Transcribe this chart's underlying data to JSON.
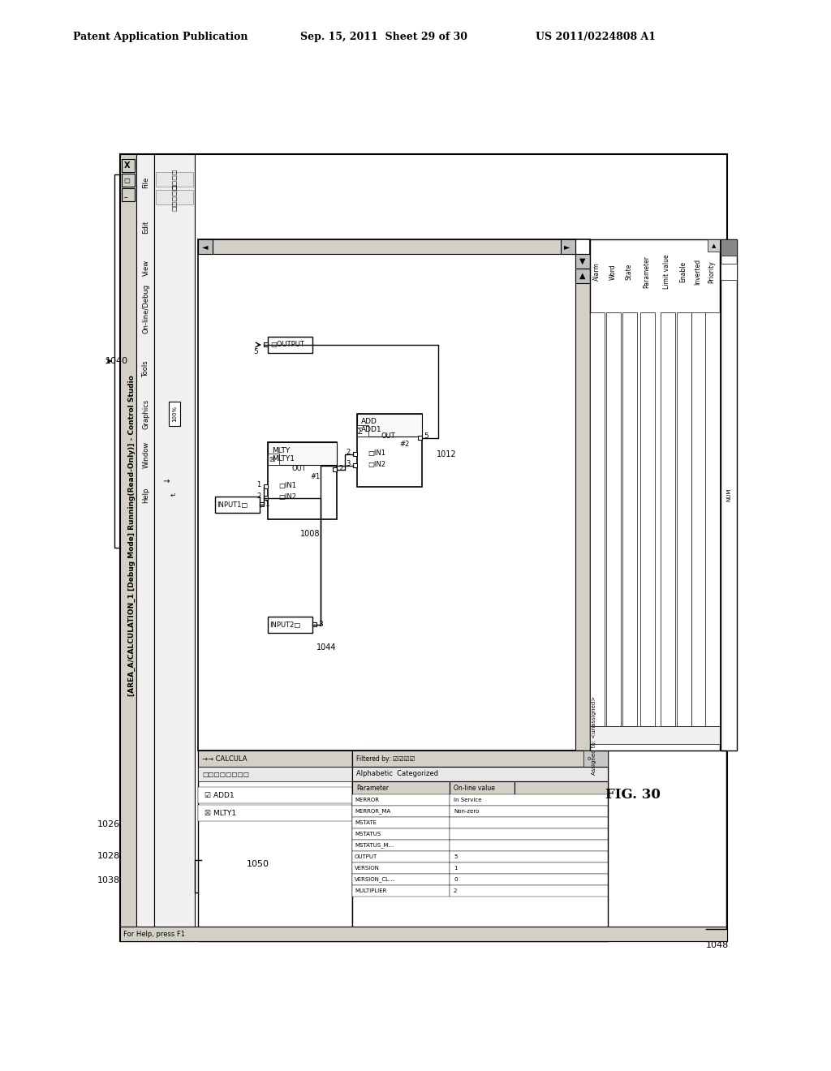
{
  "page_header_left": "Patent Application Publication",
  "page_header_mid": "Sep. 15, 2011  Sheet 29 of 30",
  "page_header_right": "US 2011/0224808 A1",
  "fig_label": "FIG. 30",
  "bg_color": "#ffffff",
  "title_bar_text": "[AREA_A/CALCULATION_1 [Debug Mode] Running(Read-Only)] - Control Studio",
  "menu_items": [
    "File",
    "Edit",
    "View",
    "On-line/Debug",
    "Tools",
    "Graphics",
    "Window",
    "Help"
  ],
  "col_headers": [
    "Alarm",
    "Word",
    "State",
    "Parameter",
    "Limit value",
    "Enable",
    "Inverted",
    "Priority"
  ],
  "params": [
    [
      "MERROR",
      "In Service"
    ],
    [
      "MERROR_MA",
      "Non-zero"
    ],
    [
      "MSTATE",
      ""
    ],
    [
      "MSTATUS",
      ""
    ],
    [
      "MSTATUS_M...",
      ""
    ],
    [
      "OUTPUT",
      "5"
    ],
    [
      "VERSION",
      "1"
    ],
    [
      "VERSION_CL...",
      "0"
    ],
    [
      "MULTIPLIER",
      "2"
    ]
  ],
  "ref_1040": "1040",
  "ref_1048": "1048",
  "ref_1008": "1008",
  "ref_1012": "1012",
  "ref_1026": "1026",
  "ref_1028": "1028",
  "ref_1038": "1038",
  "ref_1044": "1044",
  "ref_1050": "1050"
}
